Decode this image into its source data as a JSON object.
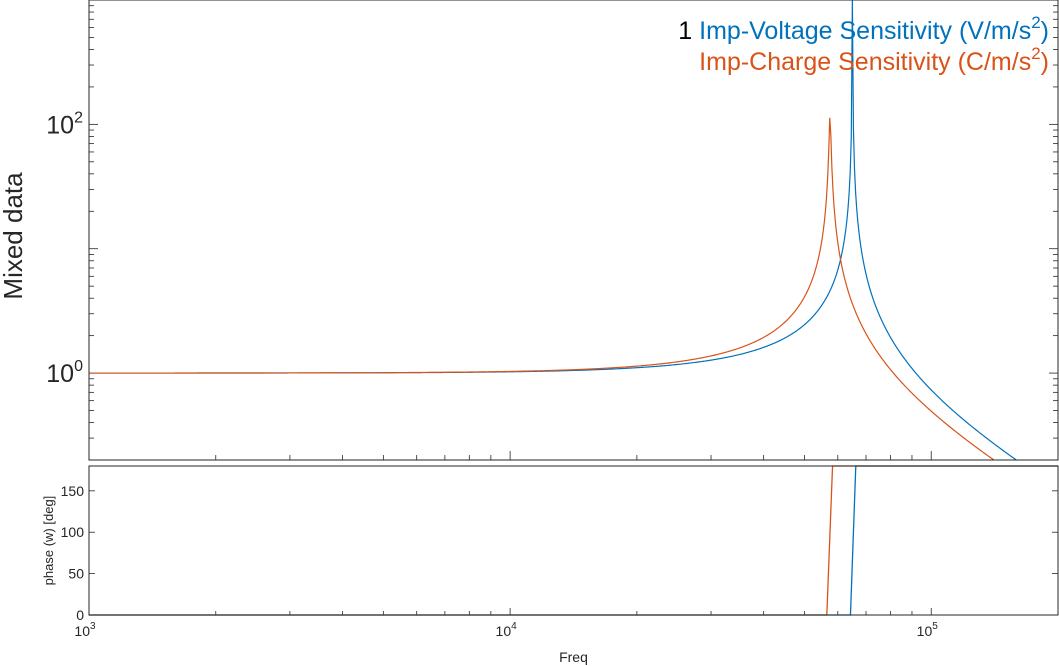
{
  "chart_data": [
    {
      "type": "line",
      "panel": "magnitude",
      "xscale": "log",
      "yscale": "log",
      "xlim": [
        1000,
        200000
      ],
      "ylim": [
        0.2,
        1000
      ],
      "ylabel": "Mixed data",
      "y_ticks": [
        {
          "base": "10",
          "exp": "0",
          "value": 1
        },
        {
          "base": "10",
          "exp": "2",
          "value": 100
        }
      ],
      "legend": {
        "position": "top-right",
        "prefix": "1",
        "entries": [
          {
            "text": "Imp-Voltage Sensitivity (V/m/s",
            "sup": "2",
            "close": ")",
            "color": "#0072BD"
          },
          {
            "text": "Imp-Charge Sensitivity (C/m/s",
            "sup": "2",
            "close": ")",
            "color": "#D95319"
          }
        ]
      },
      "series": [
        {
          "name": "Imp-Voltage Sensitivity (V/m/s²)",
          "color": "#0072BD",
          "resonance": 65000,
          "peak": 10000,
          "x": [],
          "y": []
        },
        {
          "name": "Imp-Charge Sensitivity (C/m/s²)",
          "color": "#D95319",
          "resonance": 57500,
          "peak": 120,
          "x": [],
          "y": []
        }
      ]
    },
    {
      "type": "line",
      "panel": "phase",
      "xscale": "log",
      "xlim": [
        1000,
        200000
      ],
      "ylim": [
        0,
        180
      ],
      "xlabel": "Freq",
      "ylabel": "phase (w) [deg]",
      "x_ticks": [
        {
          "base": "10",
          "exp": "3",
          "value": 1000
        },
        {
          "base": "10",
          "exp": "4",
          "value": 10000
        },
        {
          "base": "10",
          "exp": "5",
          "value": 100000
        }
      ],
      "y_ticks": [
        "0",
        "50",
        "100",
        "150"
      ],
      "series": [
        {
          "name": "Imp-Voltage Sensitivity (V/m/s²)",
          "color": "#0072BD",
          "x": [
            1000,
            64300,
            66200,
            200000
          ],
          "y": [
            0,
            0,
            180,
            180
          ]
        },
        {
          "name": "Imp-Charge Sensitivity (C/m/s²)",
          "color": "#D95319",
          "x": [
            1000,
            56500,
            58300,
            200000
          ],
          "y": [
            0,
            0,
            180,
            180
          ]
        }
      ]
    }
  ]
}
